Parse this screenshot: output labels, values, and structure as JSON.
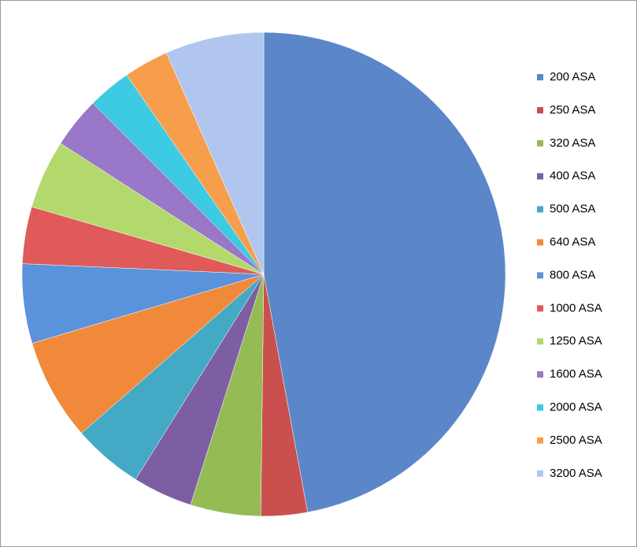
{
  "chart_data": {
    "type": "pie",
    "categories": [
      "200 ASA",
      "250 ASA",
      "320 ASA",
      "400 ASA",
      "500 ASA",
      "640 ASA",
      "800 ASA",
      "1000 ASA",
      "1250 ASA",
      "1600 ASA",
      "2000 ASA",
      "2500 ASA",
      "3200 ASA"
    ],
    "values": [
      47.1,
      3.1,
      4.7,
      4.0,
      4.7,
      6.8,
      5.3,
      3.8,
      4.6,
      3.4,
      2.9,
      3.0,
      6.6
    ],
    "colors": [
      "#5b87c9",
      "#c9504d",
      "#95bb55",
      "#7e5ea3",
      "#44a9c4",
      "#f08a3a",
      "#5a92dc",
      "#e05a5a",
      "#b3d96c",
      "#9a78c9",
      "#3ccbe2",
      "#f79e4c",
      "#b1c6ee"
    ],
    "legend": "right"
  }
}
